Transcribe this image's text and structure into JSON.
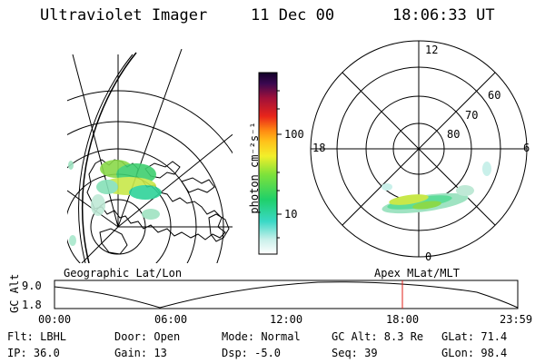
{
  "header": {
    "instrument": "Ultraviolet Imager",
    "date": "11 Dec 00",
    "time": "18:06:33 UT"
  },
  "geo_panel": {
    "label": "Geographic Lat/Lon"
  },
  "color_bar": {
    "unit_label": "photon cm⁻²s⁻¹",
    "ticks": [
      "100",
      "10"
    ]
  },
  "polar_panel": {
    "label": "Apex MLat/MLT",
    "mlt_labels": {
      "top": "12",
      "left": "18",
      "right": "6",
      "bottom": "0"
    },
    "lat_labels": [
      "60",
      "70",
      "80"
    ]
  },
  "gc_alt_plot": {
    "ylabel": "GC Alt",
    "yticks": [
      "9.0",
      "1.8"
    ],
    "xticks": [
      "00:00",
      "06:00",
      "12:00",
      "18:00",
      "23:59"
    ],
    "marker_color": "#e0201a"
  },
  "info": {
    "flt": "Flt: LBHL",
    "ip": "IP: 36.0",
    "door": "Door: Open",
    "gain": "Gain: 13",
    "mode": "Mode: Normal",
    "dsp": "Dsp:    -5.0",
    "gc_alt": "GC Alt: 8.3 Re",
    "seq": "Seq: 39",
    "glat": "GLat:  71.4",
    "glon": "GLon:  98.4"
  }
}
